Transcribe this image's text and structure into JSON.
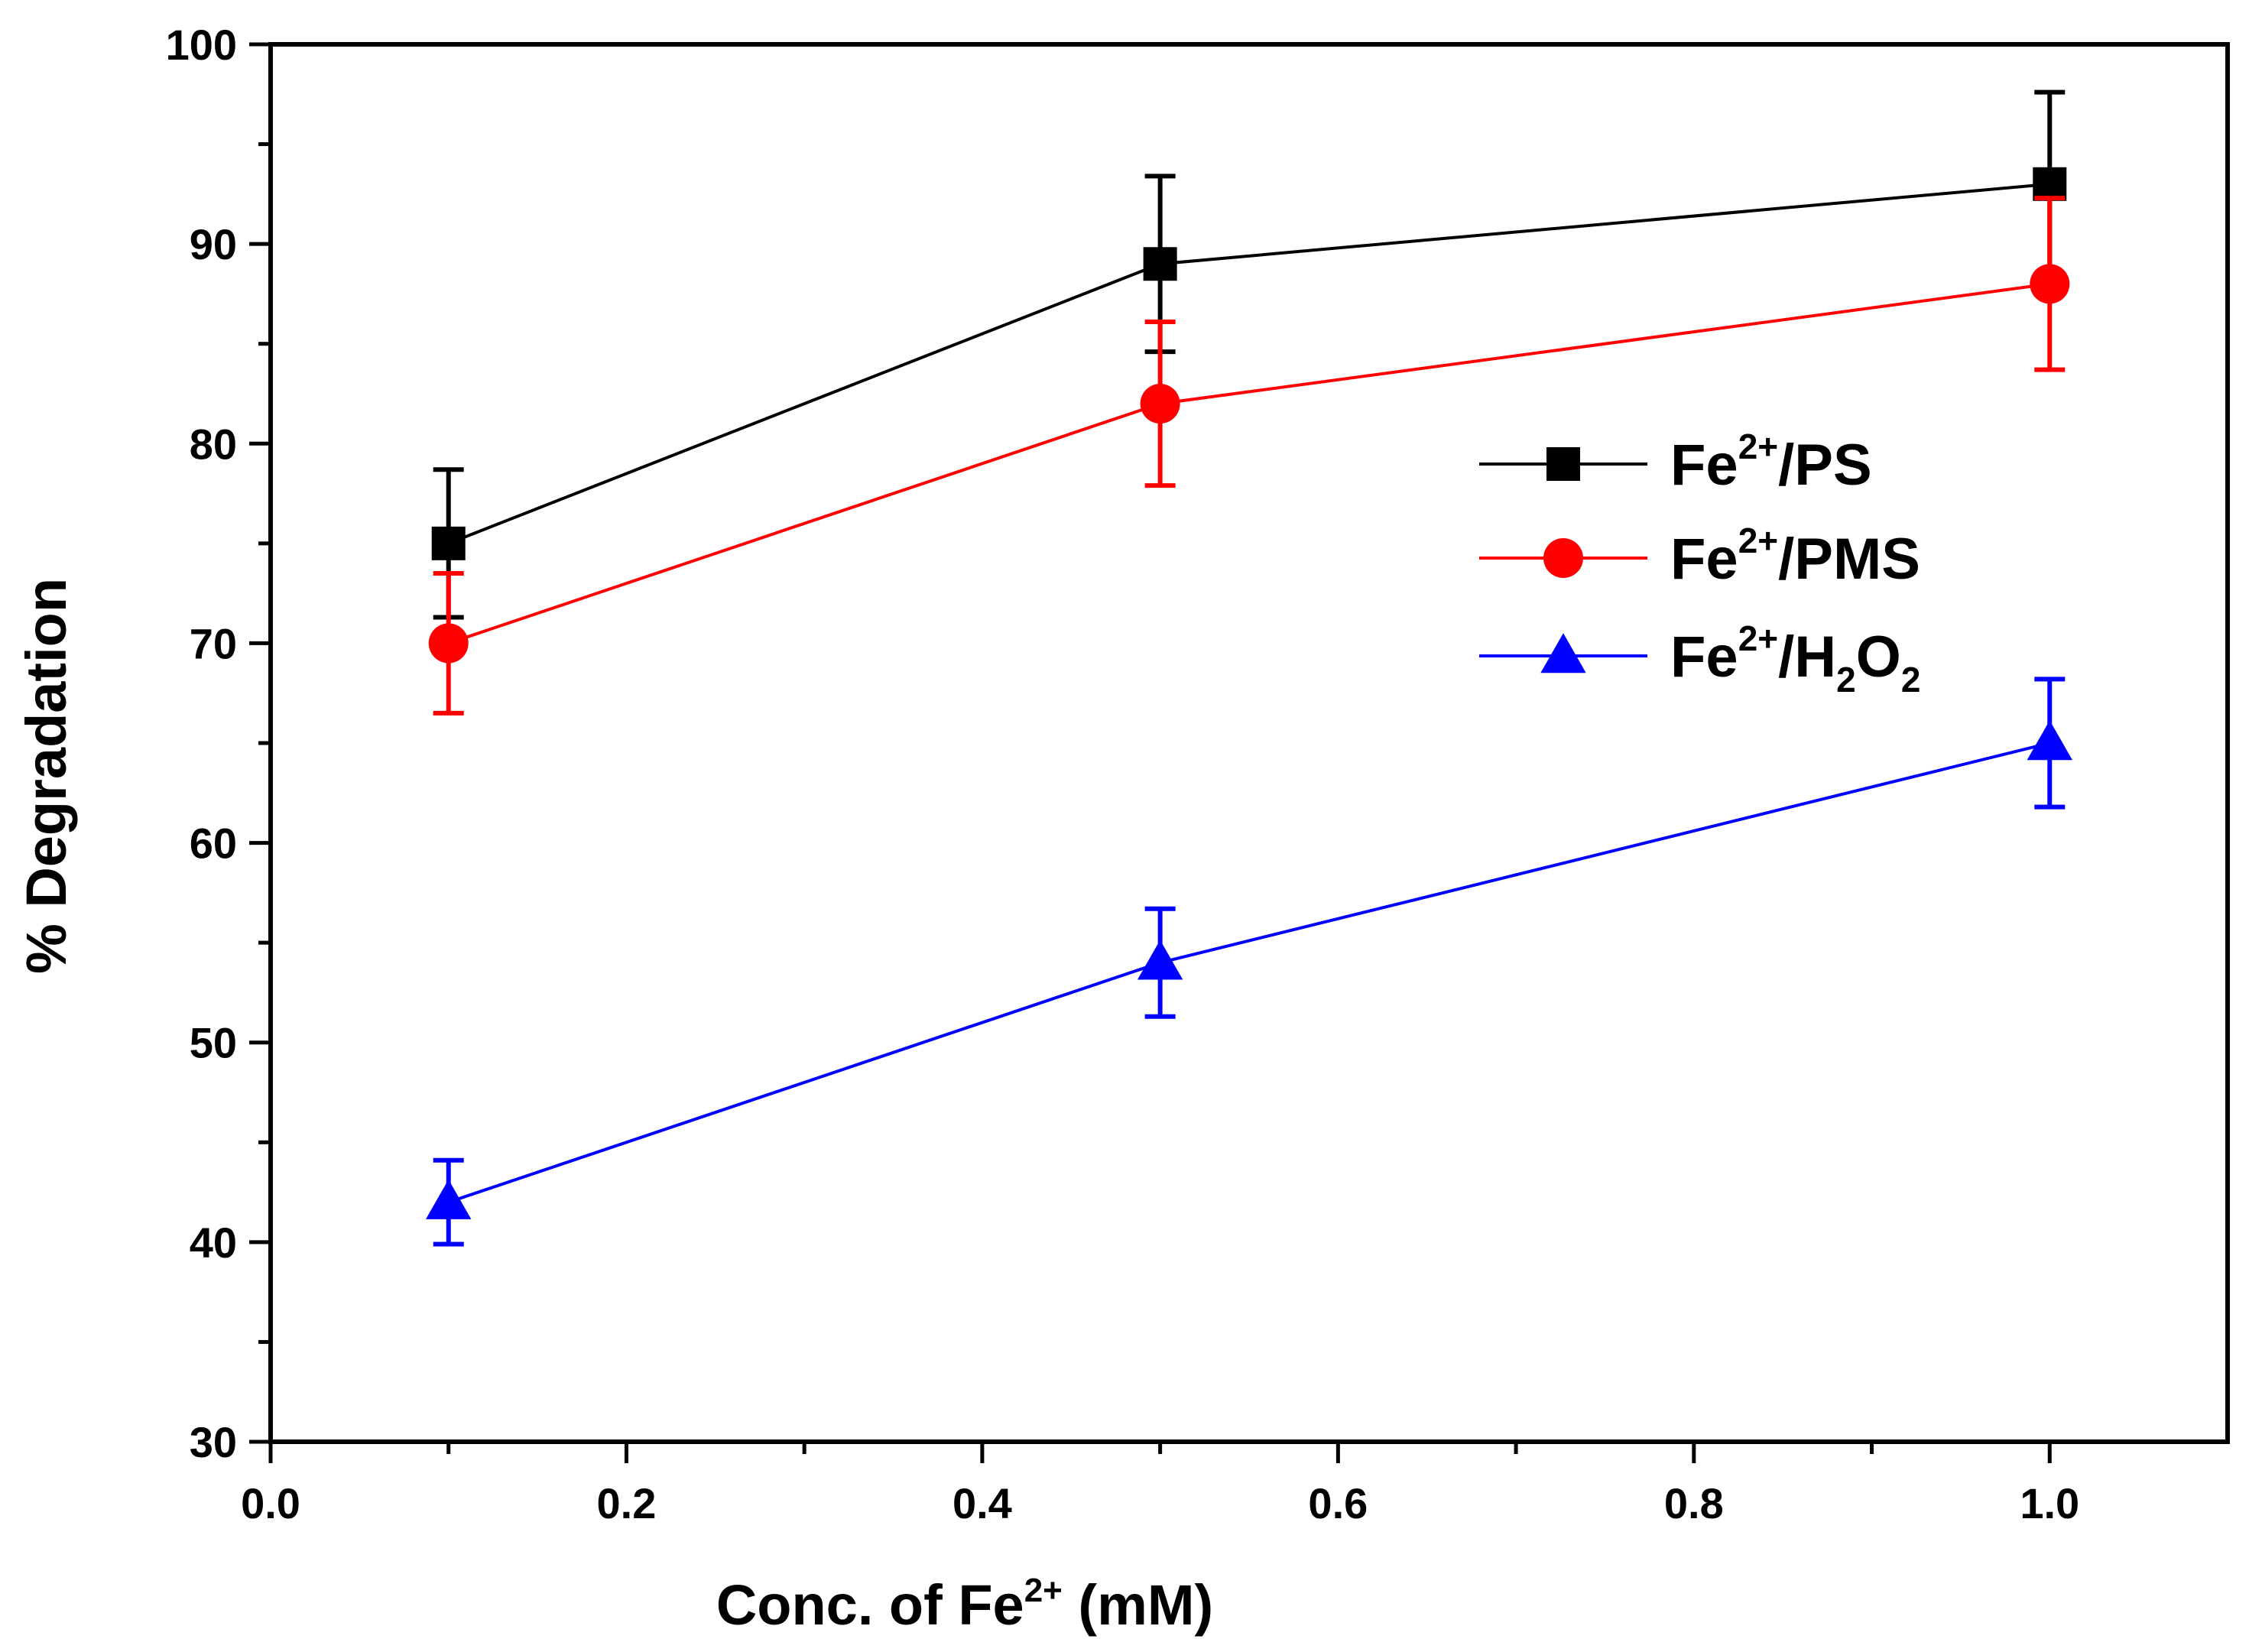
{
  "chart_data": {
    "type": "line",
    "title": "",
    "xlabel": {
      "main": "Conc. of Fe",
      "sup": "2+",
      "tail": " (mM)"
    },
    "ylabel": "% Degradation",
    "xlim": [
      0.0,
      1.1
    ],
    "ylim": [
      30,
      100
    ],
    "x_ticks": [
      0.0,
      0.2,
      0.4,
      0.6,
      0.8,
      1.0
    ],
    "x_tick_labels": [
      "0.0",
      "0.2",
      "0.4",
      "0.6",
      "0.8",
      "1.0"
    ],
    "y_ticks": [
      30,
      40,
      50,
      60,
      70,
      80,
      90,
      100
    ],
    "y_tick_labels": [
      "30",
      "40",
      "50",
      "60",
      "70",
      "80",
      "90",
      "100"
    ],
    "legend_position": "right-center",
    "grid": false,
    "x": [
      0.1,
      0.5,
      1.0
    ],
    "series": [
      {
        "name": "Fe2+/PS",
        "legend": {
          "base": "Fe",
          "sup": "2+",
          "rest": "/PS",
          "sub1": "",
          "mid": "",
          "sub2": ""
        },
        "color": "#000000",
        "marker": "square",
        "values": [
          75,
          89,
          93
        ],
        "errors": [
          3.7,
          4.4,
          4.6
        ]
      },
      {
        "name": "Fe2+/PMS",
        "legend": {
          "base": "Fe",
          "sup": "2+",
          "rest": "/PMS",
          "sub1": "",
          "mid": "",
          "sub2": ""
        },
        "color": "#ff0000",
        "marker": "circle",
        "values": [
          70,
          82,
          88
        ],
        "errors": [
          3.5,
          4.1,
          4.3
        ]
      },
      {
        "name": "Fe2+/H2O2",
        "legend": {
          "base": "Fe",
          "sup": "2+",
          "rest": "/H",
          "sub1": "2",
          "mid": "O",
          "sub2": "2"
        },
        "color": "#0000ff",
        "marker": "triangle",
        "values": [
          42,
          54,
          65
        ],
        "errors": [
          2.1,
          2.7,
          3.2
        ]
      }
    ]
  }
}
